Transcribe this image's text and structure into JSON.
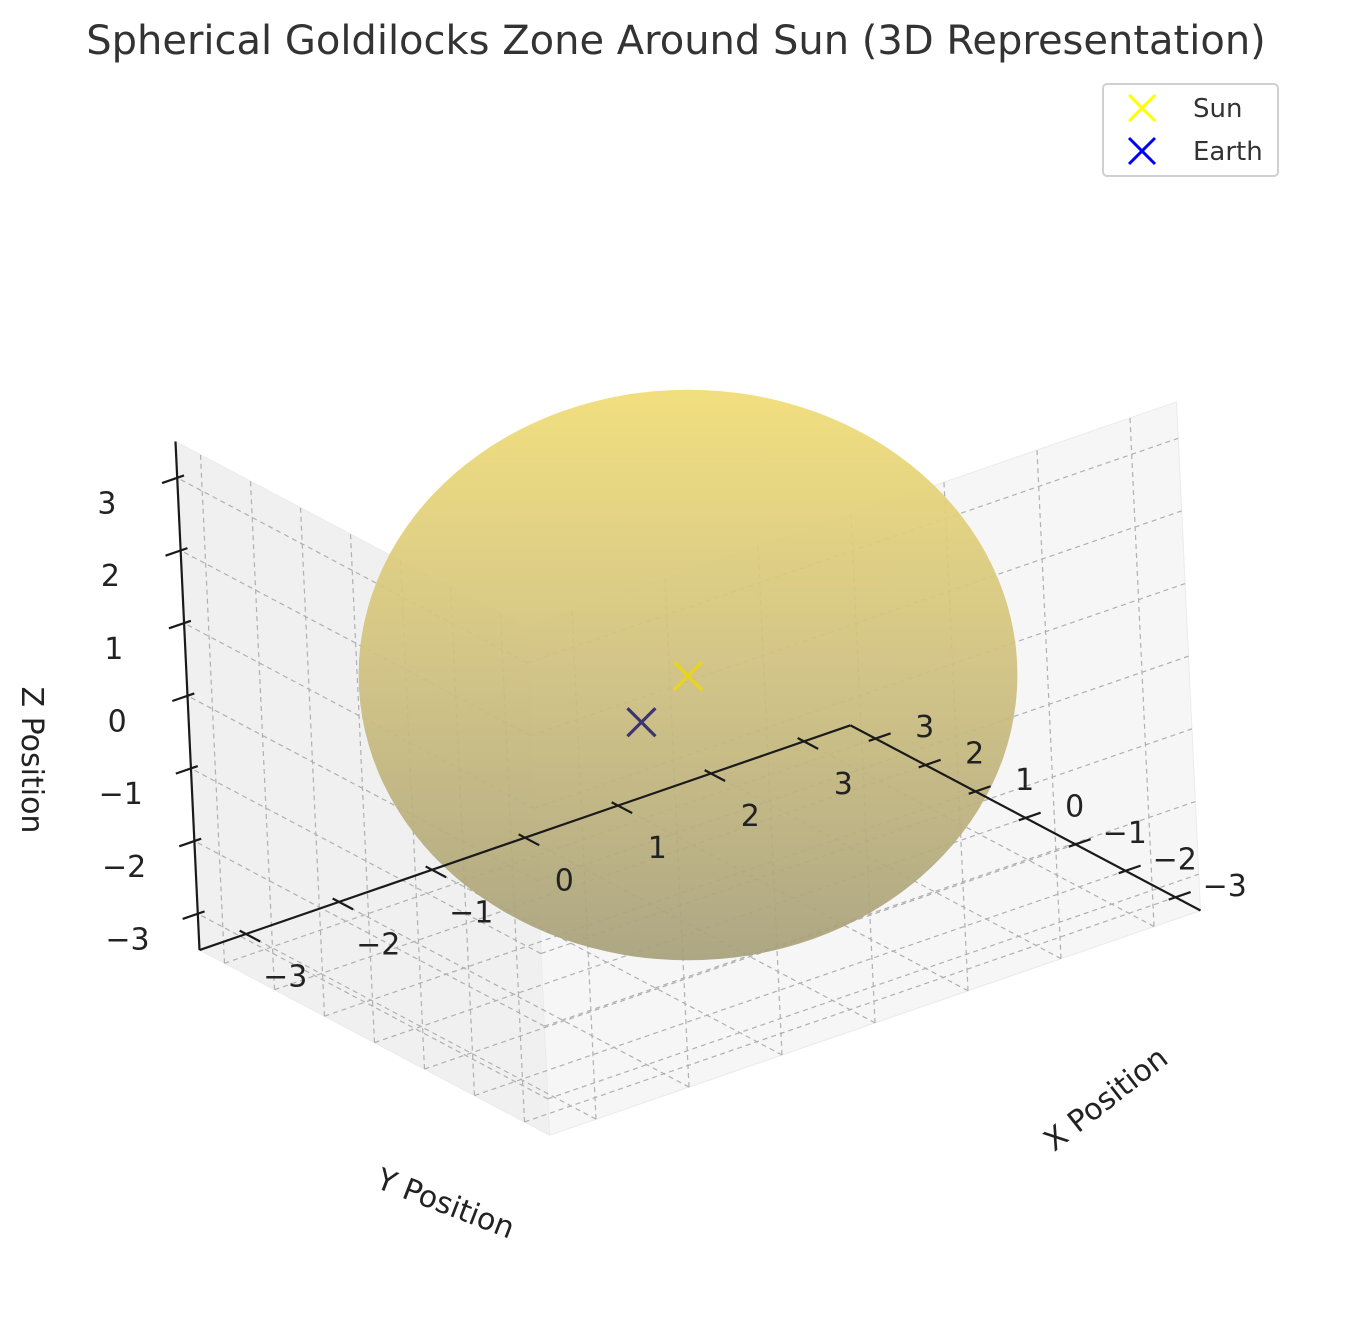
{
  "chart_data": {
    "type": "scatter",
    "title": "Spherical Goldilocks Zone Around Sun (3D Representation)",
    "xlabel": "X Position",
    "ylabel": "Y Position",
    "zlabel": "Z Position",
    "xlim": [
      -3.5,
      3.5
    ],
    "ylim": [
      -3.5,
      3.5
    ],
    "zlim": [
      -3.5,
      3.5
    ],
    "x_ticks": [
      "−3",
      "−2",
      "−1",
      "0",
      "1",
      "2",
      "3"
    ],
    "y_ticks": [
      "−3",
      "−2",
      "−1",
      "0",
      "1",
      "2",
      "3"
    ],
    "z_ticks": [
      "−3",
      "−2",
      "−1",
      "0",
      "1",
      "2",
      "3"
    ],
    "grid": true,
    "legend_position": "top-right",
    "series": [
      {
        "name": "Sun",
        "marker": "x",
        "color": "#ffff00",
        "points": [
          {
            "x": 0,
            "y": 0,
            "z": 0
          }
        ]
      },
      {
        "name": "Earth",
        "marker": "x",
        "color": "#0000ff",
        "points": [
          {
            "x": 1,
            "y": 0,
            "z": -1
          }
        ]
      }
    ],
    "surface": {
      "shape": "sphere",
      "center": [
        0,
        0,
        0
      ],
      "radius": 3,
      "color": "#f0d850"
    }
  }
}
